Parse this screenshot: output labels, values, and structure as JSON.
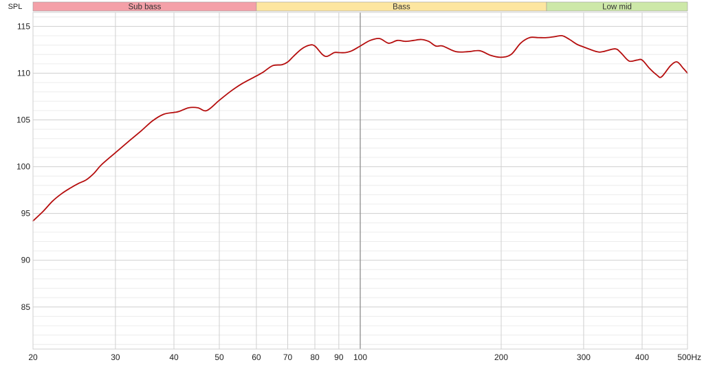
{
  "chart_data": {
    "type": "line",
    "x_scale": "log",
    "x_unit": "Hz",
    "xlim": [
      20,
      500
    ],
    "ylim": [
      80.5,
      116.5
    ],
    "y_axis_label": "SPL",
    "grid": true,
    "x_major_ticks": [
      {
        "value": 20,
        "label": "20"
      },
      {
        "value": 30,
        "label": "30"
      },
      {
        "value": 40,
        "label": "40"
      },
      {
        "value": 50,
        "label": "50"
      },
      {
        "value": 60,
        "label": "60"
      },
      {
        "value": 70,
        "label": "70"
      },
      {
        "value": 80,
        "label": "80"
      },
      {
        "value": 90,
        "label": "90"
      },
      {
        "value": 100,
        "label": "100"
      },
      {
        "value": 200,
        "label": "200"
      },
      {
        "value": 300,
        "label": "300"
      },
      {
        "value": 400,
        "label": "400"
      },
      {
        "value": 500,
        "label": "500Hz"
      }
    ],
    "y_major_ticks": [
      {
        "value": 85,
        "label": "85"
      },
      {
        "value": 90,
        "label": "90"
      },
      {
        "value": 95,
        "label": "95"
      },
      {
        "value": 100,
        "label": "100"
      },
      {
        "value": 105,
        "label": "105"
      },
      {
        "value": 110,
        "label": "110"
      },
      {
        "value": 115,
        "label": "115"
      }
    ],
    "frequency_bands": [
      {
        "label": "Sub bass",
        "from": 20,
        "to": 60,
        "color": "#f4a0a8"
      },
      {
        "label": "Bass",
        "from": 60,
        "to": 250,
        "color": "#fde6a0"
      },
      {
        "label": "Low mid",
        "from": 250,
        "to": 500,
        "color": "#cde8a8"
      }
    ],
    "series": [
      {
        "color": "#b50d0d",
        "x": [
          20,
          21,
          22,
          23,
          24,
          25,
          26,
          27,
          28,
          30,
          32,
          34,
          36,
          38,
          40,
          41,
          43,
          45,
          47,
          50,
          53,
          56,
          60,
          62,
          65,
          68,
          70,
          72,
          75,
          78,
          80,
          83,
          85,
          88,
          90,
          93,
          96,
          100,
          105,
          110,
          115,
          120,
          125,
          130,
          135,
          140,
          145,
          150,
          160,
          170,
          180,
          190,
          200,
          210,
          220,
          230,
          240,
          250,
          260,
          270,
          280,
          290,
          300,
          320,
          330,
          350,
          360,
          375,
          390,
          400,
          415,
          430,
          440,
          460,
          475,
          490,
          500
        ],
        "y": [
          94.2,
          95.2,
          96.3,
          97.1,
          97.7,
          98.2,
          98.6,
          99.3,
          100.2,
          101.5,
          102.7,
          103.8,
          104.9,
          105.6,
          105.8,
          105.9,
          106.3,
          106.3,
          106.0,
          107.1,
          108.1,
          108.9,
          109.7,
          110.1,
          110.8,
          110.9,
          111.2,
          111.8,
          112.6,
          113.0,
          112.9,
          112.0,
          111.8,
          112.2,
          112.2,
          112.2,
          112.4,
          112.9,
          113.5,
          113.7,
          113.2,
          113.5,
          113.4,
          113.5,
          113.6,
          113.4,
          112.9,
          112.9,
          112.3,
          112.3,
          112.4,
          111.9,
          111.7,
          112.0,
          113.2,
          113.8,
          113.8,
          113.8,
          113.9,
          114.0,
          113.6,
          113.1,
          112.8,
          112.3,
          112.3,
          112.6,
          112.2,
          111.3,
          111.4,
          111.4,
          110.5,
          109.8,
          109.6,
          110.8,
          111.2,
          110.5,
          110.0
        ]
      }
    ]
  }
}
